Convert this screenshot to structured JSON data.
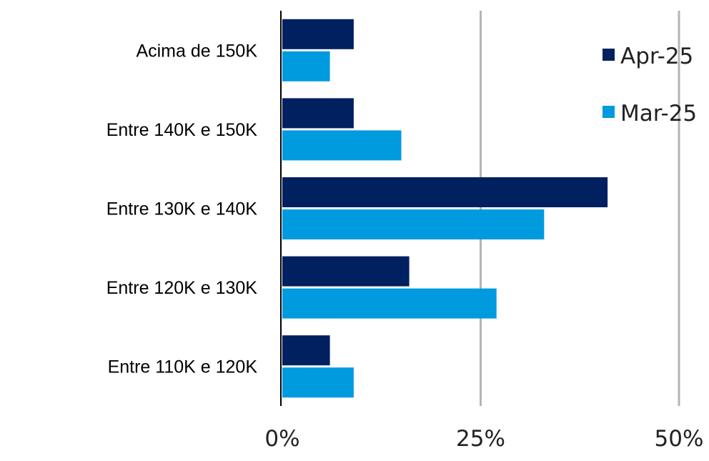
{
  "chart_data": {
    "type": "bar",
    "orientation": "horizontal",
    "categories": [
      "Acima de 150K",
      "Entre 140K e 150K",
      "Entre 130K e 140K",
      "Entre 120K e 130K",
      "Entre 110K e 120K"
    ],
    "series": [
      {
        "name": "Apr-25",
        "color": "#002060",
        "values": [
          9,
          9,
          41,
          16,
          6
        ]
      },
      {
        "name": "Mar-25",
        "color": "#009ADE",
        "values": [
          6,
          15,
          33,
          27,
          9
        ]
      }
    ],
    "xlim": [
      0,
      50
    ],
    "xticks": [
      "0%",
      "25%",
      "50%"
    ],
    "xtick_values": [
      0,
      25,
      50
    ],
    "grid": true,
    "legend_position": "top-right"
  }
}
